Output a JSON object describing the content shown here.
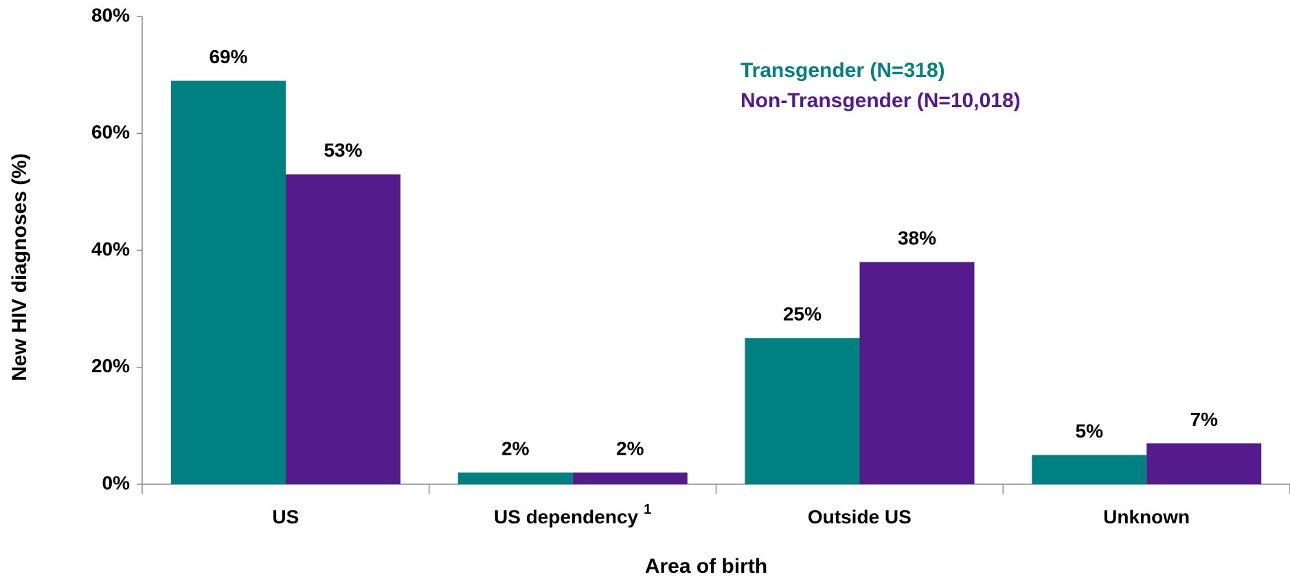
{
  "chart_data": {
    "type": "bar",
    "x_label": "Area of birth",
    "y_label": "New HIV diagnoses (%)",
    "categories": [
      "US",
      "US dependency",
      "Outside US",
      "Unknown"
    ],
    "category_superscripts": [
      null,
      "1",
      null,
      null
    ],
    "series": [
      {
        "name": "Transgender (N=318)",
        "color": "#008080",
        "values": [
          69,
          2,
          25,
          5
        ],
        "value_labels": [
          "69%",
          "2%",
          "25%",
          "5%"
        ]
      },
      {
        "name": "Non-Transgender (N=10,018)",
        "color": "#551a8b",
        "values": [
          53,
          2,
          38,
          7
        ],
        "value_labels": [
          "53%",
          "2%",
          "38%",
          "7%"
        ]
      }
    ],
    "ylim": [
      0,
      80
    ],
    "yticks": [
      {
        "value": 0,
        "label": "0%"
      },
      {
        "value": 20,
        "label": "20%"
      },
      {
        "value": 40,
        "label": "40%"
      },
      {
        "value": 60,
        "label": "60%"
      },
      {
        "value": 80,
        "label": "80%"
      }
    ],
    "legend": "top-right"
  }
}
